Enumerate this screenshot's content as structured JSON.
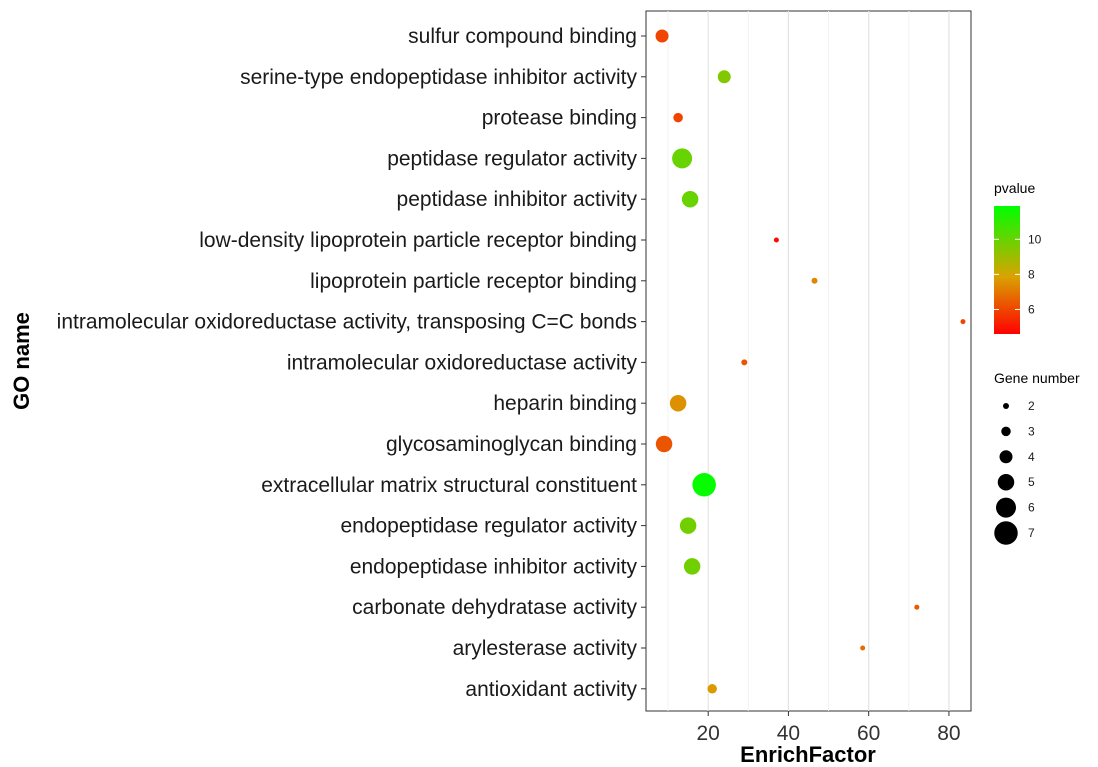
{
  "chart_data": {
    "type": "scatter",
    "xlabel": "EnrichFactor",
    "ylabel": "GO name",
    "xlim": [
      4.5,
      85.5
    ],
    "x_ticks": [
      20,
      40,
      60,
      80
    ],
    "grid": "vertical major and minor gridlines",
    "categories": [
      "sulfur compound binding",
      "serine-type endopeptidase inhibitor activity",
      "protease binding",
      "peptidase regulator activity",
      "peptidase inhibitor activity",
      "low-density lipoprotein particle receptor binding",
      "lipoprotein particle receptor binding",
      "intramolecular oxidoreductase activity, transposing C=C bonds",
      "intramolecular oxidoreductase activity",
      "heparin binding",
      "glycosaminoglycan binding",
      "extracellular matrix structural constituent",
      "endopeptidase regulator activity",
      "endopeptidase inhibitor activity",
      "carbonate dehydratase activity",
      "arylesterase activity",
      "antioxidant activity"
    ],
    "points": [
      {
        "go": "sulfur compound binding",
        "enrich": 8.5,
        "pvalue": 6.0,
        "genes": 4
      },
      {
        "go": "serine-type endopeptidase inhibitor activity",
        "enrich": 24.0,
        "pvalue": 9.5,
        "genes": 4
      },
      {
        "go": "protease binding",
        "enrich": 12.5,
        "pvalue": 6.0,
        "genes": 3
      },
      {
        "go": "peptidase regulator activity",
        "enrich": 13.5,
        "pvalue": 10.0,
        "genes": 6
      },
      {
        "go": "peptidase inhibitor activity",
        "enrich": 15.5,
        "pvalue": 10.0,
        "genes": 5
      },
      {
        "go": "low-density lipoprotein particle receptor binding",
        "enrich": 37.0,
        "pvalue": 4.8,
        "genes": 1
      },
      {
        "go": "lipoprotein particle receptor binding",
        "enrich": 46.5,
        "pvalue": 7.3,
        "genes": 2
      },
      {
        "go": "intramolecular oxidoreductase activity, transposing C=C bonds",
        "enrich": 83.5,
        "pvalue": 6.0,
        "genes": 1
      },
      {
        "go": "intramolecular oxidoreductase activity",
        "enrich": 29.0,
        "pvalue": 6.3,
        "genes": 2
      },
      {
        "go": "heparin binding",
        "enrich": 12.5,
        "pvalue": 7.5,
        "genes": 5
      },
      {
        "go": "glycosaminoglycan binding",
        "enrich": 9.0,
        "pvalue": 6.3,
        "genes": 5
      },
      {
        "go": "extracellular matrix structural constituent",
        "enrich": 19.0,
        "pvalue": 11.8,
        "genes": 7
      },
      {
        "go": "endopeptidase regulator activity",
        "enrich": 15.0,
        "pvalue": 9.8,
        "genes": 5
      },
      {
        "go": "endopeptidase inhibitor activity",
        "enrich": 16.0,
        "pvalue": 9.8,
        "genes": 5
      },
      {
        "go": "carbonate dehydratase activity",
        "enrich": 72.0,
        "pvalue": 6.4,
        "genes": 1
      },
      {
        "go": "arylesterase activity",
        "enrich": 58.5,
        "pvalue": 6.8,
        "genes": 1
      },
      {
        "go": "antioxidant activity",
        "enrich": 21.0,
        "pvalue": 7.7,
        "genes": 3
      }
    ],
    "color_legend": {
      "title": "pvalue",
      "ticks": [
        6,
        8,
        10
      ],
      "range": [
        4.6,
        11.9
      ],
      "low_color": "#ff0000",
      "high_color": "#00ff00",
      "mid_color": "#d9a300"
    },
    "size_legend": {
      "title": "Gene number",
      "values": [
        2,
        3,
        4,
        5,
        6,
        7
      ]
    }
  }
}
